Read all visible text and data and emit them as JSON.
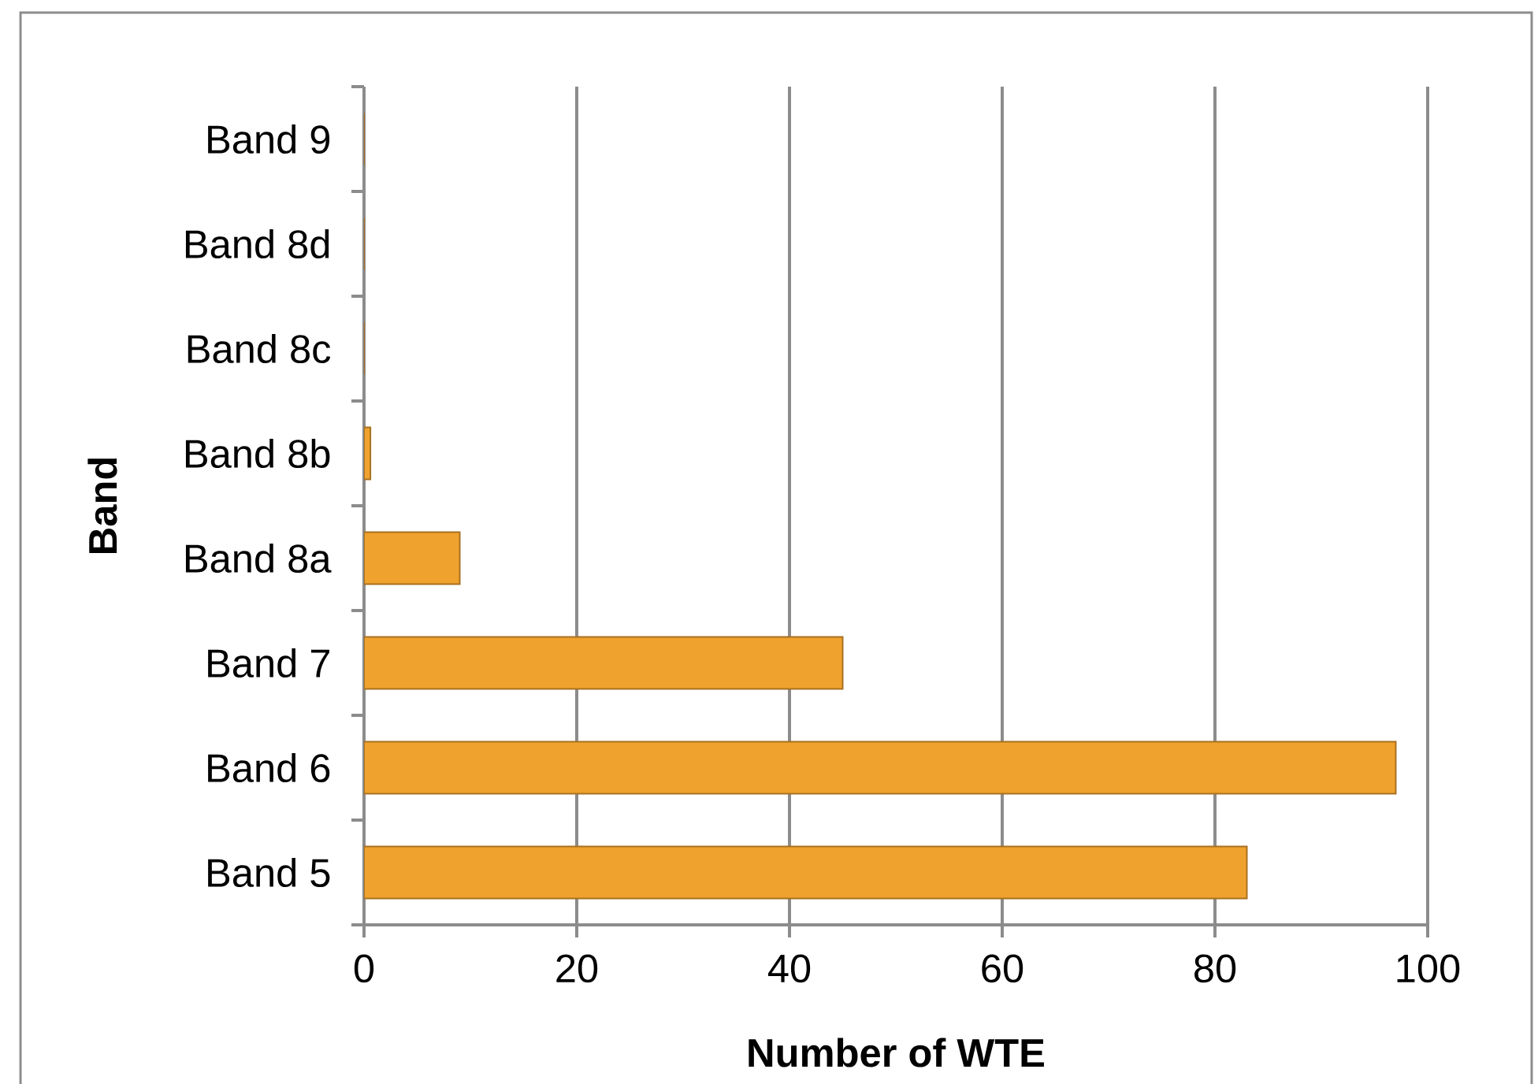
{
  "chart_data": {
    "type": "bar",
    "orientation": "horizontal",
    "xlabel": "Number of WTE",
    "ylabel": "Band",
    "categories": [
      "Band 9",
      "Band 8d",
      "Band 8c",
      "Band 8b",
      "Band 8a",
      "Band 7",
      "Band 6",
      "Band 5"
    ],
    "values": [
      0,
      0,
      0,
      0.6,
      9,
      45,
      97,
      83
    ],
    "color": "#f0a22e",
    "xlim": [
      0,
      100
    ],
    "xticks": [
      0,
      20,
      40,
      60,
      80,
      100
    ],
    "grid": "x"
  }
}
